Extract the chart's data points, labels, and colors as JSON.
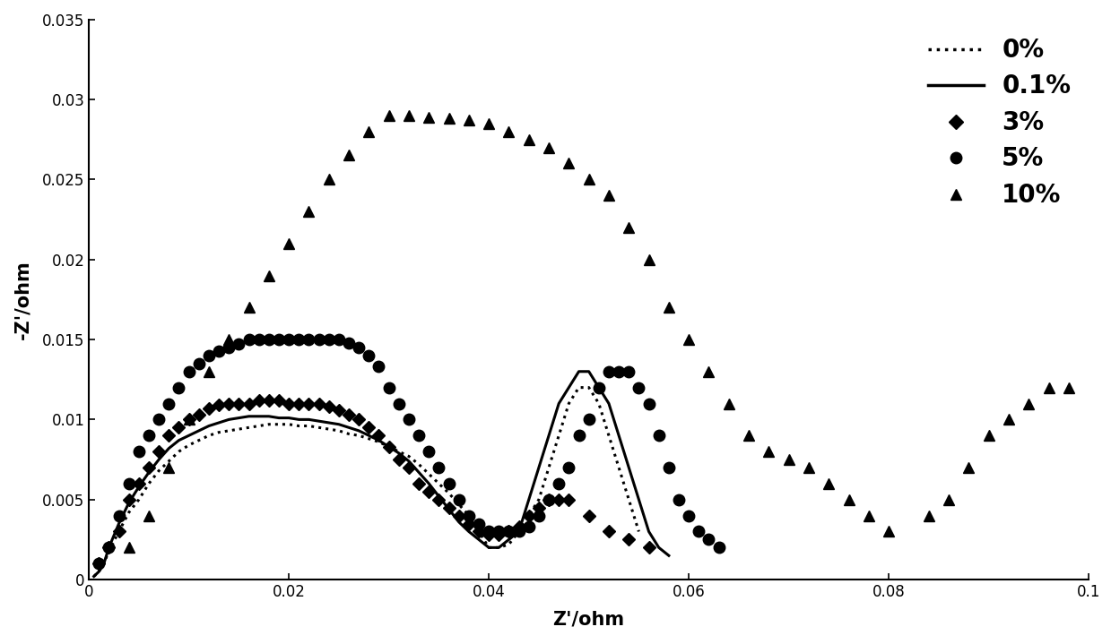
{
  "xlim": [
    0,
    0.1
  ],
  "ylim": [
    0,
    0.035
  ],
  "xlabel": "Z'/ohm",
  "ylabel": "-Z'/ohm",
  "xticks": [
    0,
    0.02,
    0.04,
    0.06,
    0.08,
    0.1
  ],
  "yticks": [
    0,
    0.005,
    0.01,
    0.015,
    0.02,
    0.025,
    0.03,
    0.035
  ],
  "series": [
    {
      "label": "0%",
      "style": "dotted",
      "color": "black",
      "linewidth": 2.2,
      "x": [
        0.0005,
        0.001,
        0.0015,
        0.002,
        0.003,
        0.004,
        0.005,
        0.006,
        0.007,
        0.008,
        0.009,
        0.01,
        0.011,
        0.012,
        0.013,
        0.014,
        0.015,
        0.016,
        0.017,
        0.018,
        0.019,
        0.02,
        0.021,
        0.022,
        0.023,
        0.024,
        0.025,
        0.026,
        0.027,
        0.028,
        0.029,
        0.03,
        0.031,
        0.032,
        0.033,
        0.034,
        0.035,
        0.036,
        0.037,
        0.038,
        0.039,
        0.0395,
        0.04,
        0.041,
        0.042,
        0.043,
        0.044,
        0.045,
        0.046,
        0.047,
        0.048,
        0.049,
        0.05,
        0.051,
        0.052,
        0.053,
        0.054,
        0.055
      ],
      "y": [
        0.0002,
        0.0005,
        0.001,
        0.0018,
        0.003,
        0.0042,
        0.005,
        0.006,
        0.0068,
        0.0074,
        0.008,
        0.0084,
        0.0087,
        0.009,
        0.0092,
        0.0093,
        0.0094,
        0.0095,
        0.0096,
        0.0097,
        0.0097,
        0.0097,
        0.0096,
        0.0096,
        0.0095,
        0.0094,
        0.0093,
        0.0091,
        0.009,
        0.0088,
        0.0086,
        0.0083,
        0.008,
        0.0077,
        0.0072,
        0.0066,
        0.006,
        0.0054,
        0.0047,
        0.004,
        0.003,
        0.0025,
        0.002,
        0.002,
        0.0022,
        0.003,
        0.004,
        0.005,
        0.007,
        0.009,
        0.011,
        0.012,
        0.012,
        0.011,
        0.009,
        0.007,
        0.005,
        0.003
      ]
    },
    {
      "label": "0.1%",
      "style": "solid",
      "color": "black",
      "linewidth": 2.2,
      "x": [
        0.0005,
        0.001,
        0.0015,
        0.002,
        0.003,
        0.004,
        0.005,
        0.006,
        0.007,
        0.008,
        0.009,
        0.01,
        0.011,
        0.012,
        0.013,
        0.014,
        0.015,
        0.016,
        0.017,
        0.018,
        0.019,
        0.02,
        0.021,
        0.022,
        0.023,
        0.024,
        0.025,
        0.026,
        0.027,
        0.028,
        0.029,
        0.03,
        0.031,
        0.032,
        0.033,
        0.034,
        0.035,
        0.036,
        0.037,
        0.038,
        0.039,
        0.04,
        0.041,
        0.042,
        0.043,
        0.044,
        0.045,
        0.046,
        0.047,
        0.048,
        0.049,
        0.05,
        0.051,
        0.052,
        0.053,
        0.054,
        0.055,
        0.056,
        0.057,
        0.058
      ],
      "y": [
        0.0002,
        0.0005,
        0.001,
        0.002,
        0.0035,
        0.0048,
        0.0058,
        0.0067,
        0.0075,
        0.0082,
        0.0087,
        0.009,
        0.0093,
        0.0096,
        0.0098,
        0.01,
        0.0101,
        0.0102,
        0.0102,
        0.0102,
        0.0101,
        0.0101,
        0.01,
        0.01,
        0.0099,
        0.0098,
        0.0097,
        0.0095,
        0.0093,
        0.009,
        0.0087,
        0.0083,
        0.0079,
        0.0074,
        0.0067,
        0.006,
        0.0052,
        0.0044,
        0.0036,
        0.003,
        0.0025,
        0.002,
        0.002,
        0.0025,
        0.003,
        0.005,
        0.007,
        0.009,
        0.011,
        0.012,
        0.013,
        0.013,
        0.012,
        0.011,
        0.009,
        0.007,
        0.005,
        0.003,
        0.002,
        0.0015
      ]
    },
    {
      "label": "3%",
      "style": "scatter",
      "marker": "D",
      "color": "black",
      "markersize": 7,
      "x": [
        0.001,
        0.002,
        0.003,
        0.004,
        0.005,
        0.006,
        0.007,
        0.008,
        0.009,
        0.01,
        0.011,
        0.012,
        0.013,
        0.014,
        0.015,
        0.016,
        0.017,
        0.018,
        0.019,
        0.02,
        0.021,
        0.022,
        0.023,
        0.024,
        0.025,
        0.026,
        0.027,
        0.028,
        0.029,
        0.03,
        0.031,
        0.032,
        0.033,
        0.034,
        0.035,
        0.036,
        0.037,
        0.038,
        0.039,
        0.04,
        0.041,
        0.042,
        0.043,
        0.044,
        0.045,
        0.046,
        0.047,
        0.048,
        0.05,
        0.052,
        0.054,
        0.056
      ],
      "y": [
        0.001,
        0.002,
        0.003,
        0.005,
        0.006,
        0.007,
        0.008,
        0.009,
        0.0095,
        0.01,
        0.0103,
        0.0107,
        0.0109,
        0.011,
        0.011,
        0.011,
        0.0112,
        0.0112,
        0.0112,
        0.011,
        0.011,
        0.011,
        0.011,
        0.0108,
        0.0106,
        0.0103,
        0.01,
        0.0095,
        0.009,
        0.0083,
        0.0075,
        0.007,
        0.006,
        0.0055,
        0.005,
        0.0045,
        0.004,
        0.0035,
        0.003,
        0.0028,
        0.0028,
        0.003,
        0.0033,
        0.004,
        0.0045,
        0.005,
        0.005,
        0.005,
        0.004,
        0.003,
        0.0025,
        0.002
      ]
    },
    {
      "label": "5%",
      "style": "scatter",
      "marker": "o",
      "color": "black",
      "markersize": 9,
      "x": [
        0.001,
        0.002,
        0.003,
        0.004,
        0.005,
        0.006,
        0.007,
        0.008,
        0.009,
        0.01,
        0.011,
        0.012,
        0.013,
        0.014,
        0.015,
        0.016,
        0.017,
        0.018,
        0.019,
        0.02,
        0.021,
        0.022,
        0.023,
        0.024,
        0.025,
        0.026,
        0.027,
        0.028,
        0.029,
        0.03,
        0.031,
        0.032,
        0.033,
        0.034,
        0.035,
        0.036,
        0.037,
        0.038,
        0.039,
        0.04,
        0.041,
        0.042,
        0.043,
        0.044,
        0.045,
        0.046,
        0.047,
        0.048,
        0.049,
        0.05,
        0.051,
        0.052,
        0.053,
        0.054,
        0.055,
        0.056,
        0.057,
        0.058,
        0.059,
        0.06,
        0.061,
        0.062,
        0.063
      ],
      "y": [
        0.001,
        0.002,
        0.004,
        0.006,
        0.008,
        0.009,
        0.01,
        0.011,
        0.012,
        0.013,
        0.0135,
        0.014,
        0.0143,
        0.0145,
        0.0147,
        0.015,
        0.015,
        0.015,
        0.015,
        0.015,
        0.015,
        0.015,
        0.015,
        0.015,
        0.015,
        0.0148,
        0.0145,
        0.014,
        0.0133,
        0.012,
        0.011,
        0.01,
        0.009,
        0.008,
        0.007,
        0.006,
        0.005,
        0.004,
        0.0035,
        0.003,
        0.003,
        0.003,
        0.003,
        0.0033,
        0.004,
        0.005,
        0.006,
        0.007,
        0.009,
        0.01,
        0.012,
        0.013,
        0.013,
        0.013,
        0.012,
        0.011,
        0.009,
        0.007,
        0.005,
        0.004,
        0.003,
        0.0025,
        0.002
      ]
    },
    {
      "label": "10%",
      "style": "scatter",
      "marker": "^",
      "color": "black",
      "markersize": 9,
      "x": [
        0.004,
        0.006,
        0.008,
        0.01,
        0.012,
        0.014,
        0.016,
        0.018,
        0.02,
        0.022,
        0.024,
        0.026,
        0.028,
        0.03,
        0.032,
        0.034,
        0.036,
        0.038,
        0.04,
        0.042,
        0.044,
        0.046,
        0.048,
        0.05,
        0.052,
        0.054,
        0.056,
        0.058,
        0.06,
        0.062,
        0.064,
        0.066,
        0.068,
        0.07,
        0.072,
        0.074,
        0.076,
        0.078,
        0.08,
        0.084,
        0.086,
        0.088,
        0.09,
        0.092,
        0.094,
        0.096,
        0.098
      ],
      "y": [
        0.002,
        0.004,
        0.007,
        0.01,
        0.013,
        0.015,
        0.017,
        0.019,
        0.021,
        0.023,
        0.025,
        0.0265,
        0.028,
        0.029,
        0.029,
        0.0289,
        0.0288,
        0.0287,
        0.0285,
        0.028,
        0.0275,
        0.027,
        0.026,
        0.025,
        0.024,
        0.022,
        0.02,
        0.017,
        0.015,
        0.013,
        0.011,
        0.009,
        0.008,
        0.0075,
        0.007,
        0.006,
        0.005,
        0.004,
        0.003,
        0.004,
        0.005,
        0.007,
        0.009,
        0.01,
        0.011,
        0.012,
        0.012
      ]
    }
  ]
}
